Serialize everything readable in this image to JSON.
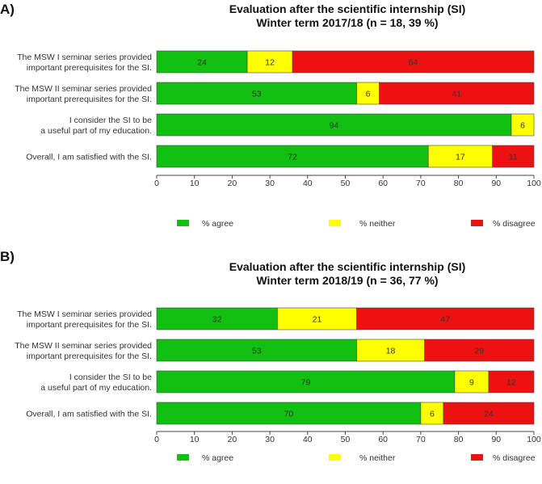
{
  "chart_data": [
    {
      "panel_label": "A)",
      "type": "bar",
      "orientation": "horizontal-stacked",
      "title": "Evaluation after the scientific internship (SI)",
      "subtitle": "Winter term 2017/18 (n = 18, 39 %)",
      "categories": [
        [
          "The MSW I seminar series provided",
          "important prerequisites for the SI."
        ],
        [
          "The MSW II seminar series provided",
          "important prerequisites for the SI."
        ],
        [
          "I consider the SI to be",
          "a useful part of my education."
        ],
        [
          "Overall, I am satisfied with the SI."
        ]
      ],
      "series": [
        {
          "name": "% agree",
          "color": "#11c011",
          "values": [
            24,
            53,
            94,
            72
          ]
        },
        {
          "name": "% neither",
          "color": "#ffff00",
          "values": [
            12,
            6,
            6,
            17
          ]
        },
        {
          "name": "% disagree",
          "color": "#ee1111",
          "values": [
            64,
            41,
            0,
            11
          ]
        }
      ],
      "xlim": [
        0,
        100
      ],
      "xticks": [
        0,
        10,
        20,
        30,
        40,
        50,
        60,
        70,
        80,
        90,
        100
      ],
      "legend_position": "bottom"
    },
    {
      "panel_label": "B)",
      "type": "bar",
      "orientation": "horizontal-stacked",
      "title": "Evaluation after the scientific internship (SI)",
      "subtitle": "Winter term 2018/19 (n = 36, 77 %)",
      "categories": [
        [
          "The MSW I seminar series provided",
          "important prerequisites for the SI."
        ],
        [
          "The MSW II seminar series provided",
          "important prerequisites for the SI."
        ],
        [
          "I consider the SI to be",
          "a useful part of my education."
        ],
        [
          "Overall, I am satisfied with the SI."
        ]
      ],
      "series": [
        {
          "name": "% agree",
          "color": "#11c011",
          "values": [
            32,
            53,
            79,
            70
          ]
        },
        {
          "name": "% neither",
          "color": "#ffff00",
          "values": [
            21,
            18,
            9,
            6
          ]
        },
        {
          "name": "% disagree",
          "color": "#ee1111",
          "values": [
            47,
            29,
            12,
            24
          ]
        }
      ],
      "xlim": [
        0,
        100
      ],
      "xticks": [
        0,
        10,
        20,
        30,
        40,
        50,
        60,
        70,
        80,
        90,
        100
      ],
      "legend_position": "bottom"
    }
  ]
}
